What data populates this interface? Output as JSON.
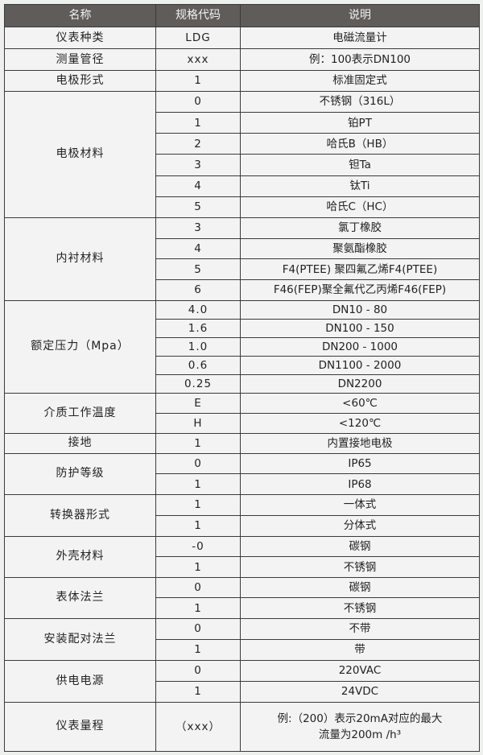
{
  "header": {
    "name": "名称",
    "code": "规格代码",
    "desc": "说明"
  },
  "groups": [
    {
      "name": "仪表种类",
      "rows": [
        [
          "LDG",
          "电磁流量计"
        ]
      ]
    },
    {
      "name": "测量管径",
      "rows": [
        [
          "xxx",
          "例：100表示DN100"
        ]
      ]
    },
    {
      "name": "电极形式",
      "rows": [
        [
          "1",
          "标准固定式"
        ]
      ]
    },
    {
      "name": "电极材料",
      "rows": [
        [
          "0",
          "不锈钢（316L）"
        ],
        [
          "1",
          "铂PT"
        ],
        [
          "2",
          "哈氏B（HB）"
        ],
        [
          "3",
          "钽Ta"
        ],
        [
          "4",
          "钛Ti"
        ],
        [
          "5",
          "哈氏C（HC）"
        ]
      ]
    },
    {
      "name": "内衬材料",
      "rows": [
        [
          "3",
          "氯丁橡胶"
        ],
        [
          "4",
          "聚氨酯橡胶"
        ],
        [
          "5",
          "F4(PTEE) 聚四氟乙烯F4(PTEE)"
        ],
        [
          "6",
          "F46(FEP)聚全氟代乙丙烯F46(FEP)"
        ]
      ]
    },
    {
      "name": "额定压力（Mpa）",
      "rows": [
        [
          "4.0",
          "DN10 - 80"
        ],
        [
          "1.6",
          "DN100 - 150"
        ],
        [
          "1.0",
          "DN200 - 1000"
        ],
        [
          "0.6",
          "DN1100 - 2000"
        ],
        [
          "0.25",
          "DN2200"
        ]
      ]
    },
    {
      "name": "介质工作温度",
      "rows": [
        [
          "E",
          "<60℃"
        ],
        [
          "H",
          "<120℃"
        ]
      ]
    },
    {
      "name": "接地",
      "rows": [
        [
          "1",
          "内置接地电极"
        ]
      ]
    },
    {
      "name": "防护等级",
      "rows": [
        [
          "0",
          "IP65"
        ],
        [
          "1",
          "IP68"
        ]
      ]
    },
    {
      "name": "转换器形式",
      "rows": [
        [
          "1",
          "一体式"
        ],
        [
          "1",
          "分体式"
        ]
      ]
    },
    {
      "name": "外壳材料",
      "rows": [
        [
          "-0",
          "碳钢"
        ],
        [
          "1",
          "不锈钢"
        ]
      ]
    },
    {
      "name": "表体法兰",
      "rows": [
        [
          "0",
          "碳钢"
        ],
        [
          "1",
          "不锈钢"
        ]
      ]
    },
    {
      "name": "安装配对法兰",
      "rows": [
        [
          "0",
          "不带"
        ],
        [
          "1",
          "带"
        ]
      ]
    },
    {
      "name": "供电电源",
      "rows": [
        [
          "0",
          "220VAC"
        ],
        [
          "1",
          "24VDC"
        ]
      ]
    },
    {
      "name": "仪表量程",
      "rows": [
        [
          "（xxx）",
          "例:（200）表示20mA对应的最大流量为200m /h³"
        ]
      ]
    }
  ]
}
